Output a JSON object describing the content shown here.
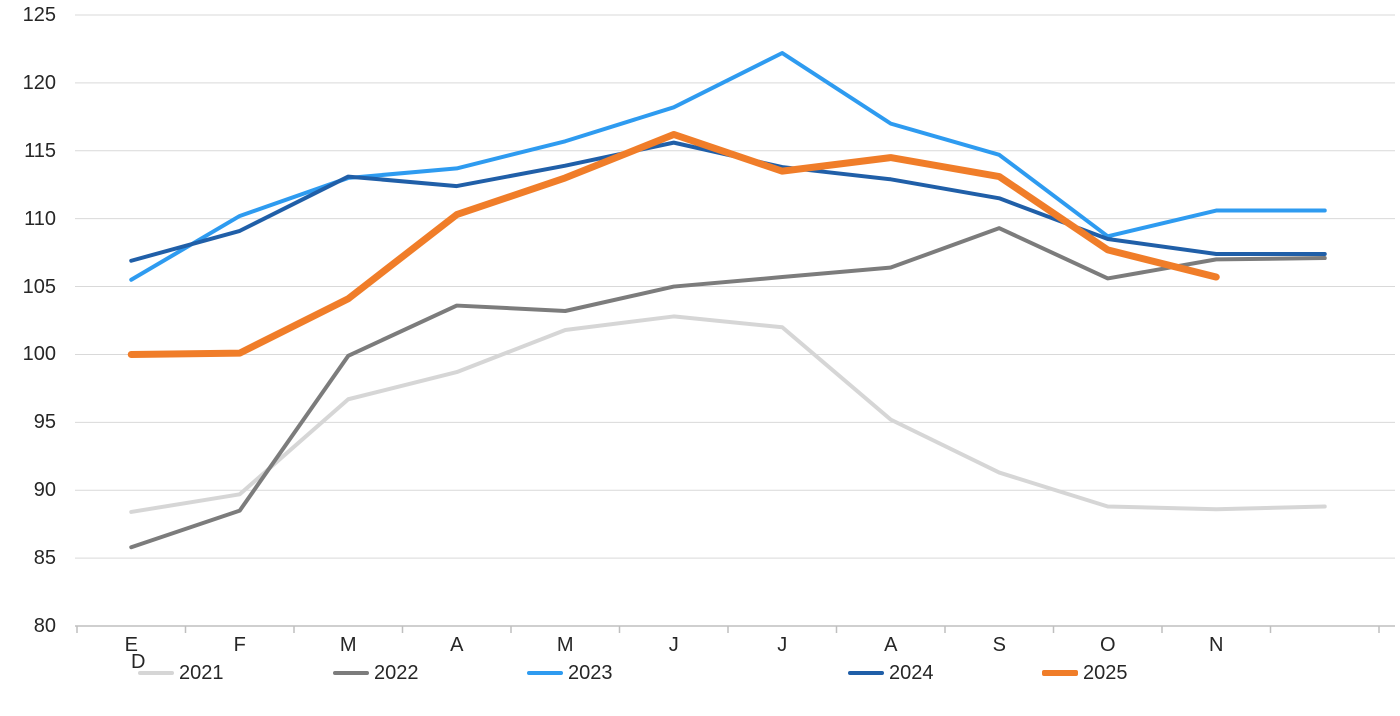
{
  "chart_data": {
    "type": "line",
    "categories": [
      "E",
      "F",
      "M",
      "A",
      "M",
      "J",
      "J",
      "A",
      "S",
      "O",
      "N",
      "D"
    ],
    "x_tick_labels_row1": [
      "E",
      "F",
      "M",
      "A",
      "M",
      "J",
      "J",
      "A",
      "S",
      "O",
      "N"
    ],
    "x_tick_label_wrapped": "D",
    "y_ticks": [
      80,
      85,
      90,
      95,
      100,
      105,
      110,
      115,
      120,
      125
    ],
    "ylim": [
      80,
      125
    ],
    "grid": true,
    "legend_position": "bottom",
    "series": [
      {
        "name": "2021",
        "color": "#D6D6D6",
        "stroke_width": 4,
        "values": [
          88.4,
          89.7,
          96.7,
          98.7,
          101.8,
          102.8,
          102.0,
          95.2,
          91.3,
          88.8,
          88.6,
          88.8
        ]
      },
      {
        "name": "2022",
        "color": "#7C7C7C",
        "stroke_width": 4,
        "values": [
          85.8,
          88.5,
          99.9,
          103.6,
          103.2,
          105.0,
          105.7,
          106.4,
          109.3,
          105.6,
          107.0,
          107.1
        ]
      },
      {
        "name": "2023",
        "color": "#2E9BF0",
        "stroke_width": 4,
        "values": [
          105.5,
          110.2,
          113.0,
          113.7,
          115.7,
          118.2,
          122.2,
          117.0,
          114.7,
          108.7,
          110.6,
          110.6
        ]
      },
      {
        "name": "2024",
        "color": "#205FA8",
        "stroke_width": 4,
        "values": [
          106.9,
          109.1,
          113.1,
          112.4,
          113.9,
          115.6,
          113.8,
          112.9,
          111.5,
          108.5,
          107.4,
          107.4
        ]
      },
      {
        "name": "2025",
        "color": "#F07D29",
        "stroke_width": 7,
        "values": [
          100.0,
          100.1,
          104.1,
          110.3,
          113.0,
          116.2,
          113.5,
          114.5,
          113.1,
          107.7,
          105.7,
          null
        ]
      }
    ],
    "colors": {
      "gridline": "#D9D9D9",
      "axis_line": "#BFBFBF",
      "tick_mark": "#BFBFBF",
      "tick_text": "#262626"
    }
  }
}
